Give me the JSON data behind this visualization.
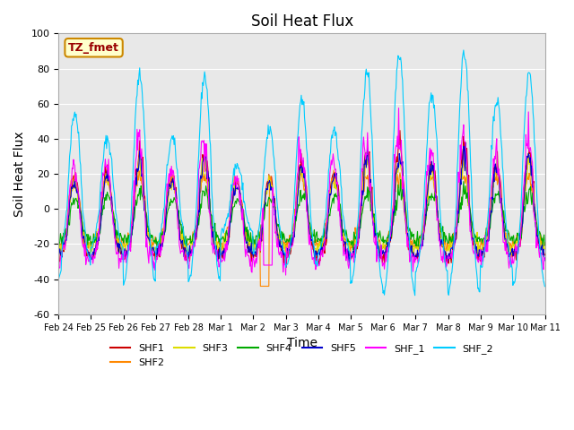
{
  "title": "Soil Heat Flux",
  "xlabel": "Time",
  "ylabel": "Soil Heat Flux",
  "ylim": [
    -60,
    100
  ],
  "xlim": [
    0,
    15
  ],
  "background_color": "#e8e8e8",
  "series_colors": {
    "SHF1": "#cc0000",
    "SHF2": "#ff8800",
    "SHF3": "#dddd00",
    "SHF4": "#00aa00",
    "SHF5": "#0000cc",
    "SHF_1": "#ff00ff",
    "SHF_2": "#00ccff"
  },
  "xtick_labels": [
    "Feb 24",
    "Feb 25",
    "Feb 26",
    "Feb 27",
    "Feb 28",
    "Mar 1",
    "Mar 2",
    "Mar 3",
    "Mar 4",
    "Mar 5",
    "Mar 6",
    "Mar 7",
    "Mar 8",
    "Mar 9",
    "Mar 10",
    "Mar 11"
  ],
  "ytick_labels": [
    -60,
    -40,
    -20,
    0,
    20,
    40,
    60,
    80,
    100
  ],
  "tz_label": "TZ_fmet",
  "annotation_box_facecolor": "#ffffcc",
  "annotation_box_edgecolor": "#cc8800"
}
